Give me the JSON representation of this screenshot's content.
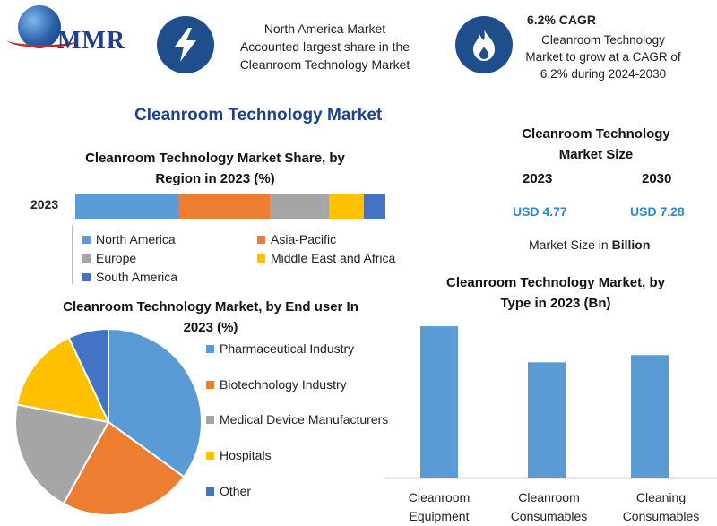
{
  "header": {
    "logo_text": "MMR",
    "box1_text": [
      "North America Market",
      "Accounted largest share in the",
      "Cleanroom Technology Market"
    ],
    "box2_title": "6.2% CAGR",
    "box2_text": [
      "Cleanroom Technology",
      "Market to grow at a CAGR of",
      "6.2% during 2024-2030"
    ],
    "icon1": "lightning-icon",
    "icon2": "flame-icon"
  },
  "main_title": "Cleanroom Technology Market",
  "colors": {
    "north_america": "#5b9bd5",
    "asia_pacific": "#ed7d31",
    "europe": "#a5a5a5",
    "middle_east": "#ffc000",
    "south_america": "#4472c4",
    "accent": "#1f4e8c",
    "value_blue": "#2f86d6"
  },
  "market_size": {
    "title": [
      "Cleanroom Technology",
      "Market Size"
    ],
    "years": [
      "2023",
      "2030"
    ],
    "values": [
      "USD 4.77",
      "USD 7.28"
    ],
    "note": "Market Size in Billion"
  },
  "chart_data": [
    {
      "type": "bar",
      "orientation": "horizontal-stacked",
      "title": [
        "Cleanroom Technology Market Share, by",
        "Region in 2023 (%)"
      ],
      "categories": [
        "2023"
      ],
      "series": [
        {
          "name": "North America",
          "values": [
            33
          ]
        },
        {
          "name": "Asia-Pacific",
          "values": [
            29
          ]
        },
        {
          "name": "Europe",
          "values": [
            19
          ]
        },
        {
          "name": "Middle East and Africa",
          "values": [
            11
          ]
        },
        {
          "name": "South America",
          "values": [
            7
          ]
        }
      ]
    },
    {
      "type": "pie",
      "title": [
        "Cleanroom Technology Market, by End user In",
        "2023 (%)"
      ],
      "labels": [
        "Pharmaceutical Industry",
        "Biotechnology Industry",
        "Medical Device Manufacturers",
        "Hospitals",
        "Other"
      ],
      "values": [
        35,
        23,
        20,
        15,
        7
      ]
    },
    {
      "type": "bar",
      "title": [
        "Cleanroom Technology Market, by",
        "Type in 2023 (Bn)"
      ],
      "categories": [
        [
          "Cleanroom",
          "Equipment"
        ],
        [
          "Cleanroom",
          "Consumables"
        ],
        [
          "Cleaning",
          "Consumables"
        ]
      ],
      "values": [
        2.1,
        1.6,
        1.7
      ],
      "ylim": [
        0,
        2.3
      ]
    }
  ]
}
